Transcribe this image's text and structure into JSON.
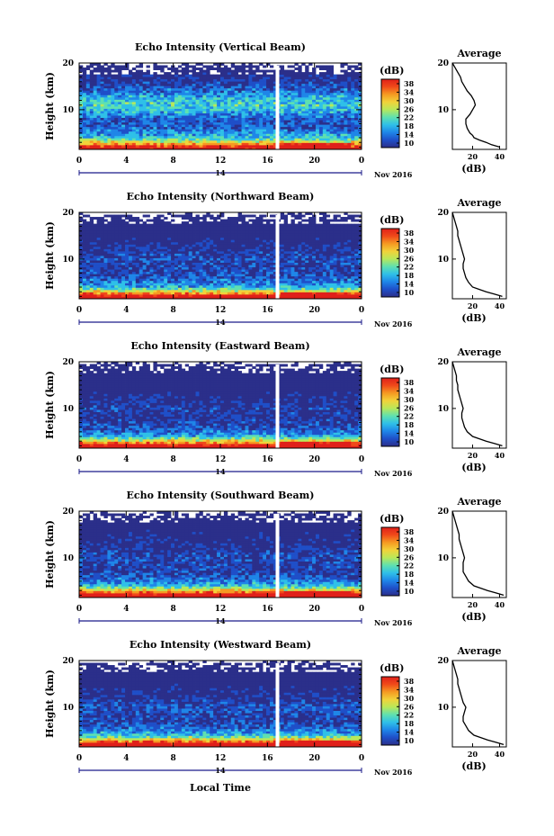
{
  "chart_data": {
    "type": "heatmap",
    "date_label": "Nov 2016",
    "day_label": "14",
    "x_common_label": "Local Time",
    "x_ticks": [
      "0",
      "4",
      "8",
      "12",
      "16",
      "20",
      "0"
    ],
    "xlim": [
      0,
      24
    ],
    "y_label": "Height (km)",
    "ylim": [
      1.5,
      20
    ],
    "y_ticks": [
      "20",
      "10"
    ],
    "colorbar": {
      "unit_label": "(dB)",
      "ticks": [
        "38",
        "34",
        "30",
        "26",
        "22",
        "18",
        "14",
        "10"
      ],
      "range": [
        10,
        40
      ],
      "colors": [
        "#2b2f8a",
        "#1f4fc8",
        "#1f86e8",
        "#2fc0e8",
        "#5fe0b0",
        "#b8e85a",
        "#f2d23a",
        "#f59a22",
        "#f04a1a",
        "#e0201a"
      ]
    },
    "profile": {
      "title": "Average",
      "x_label": "(dB)",
      "x_ticks": [
        "20",
        "40"
      ],
      "xlim": [
        5,
        45
      ]
    },
    "panels": [
      {
        "title": "Echo Intensity (Vertical Beam)",
        "profile": [
          [
            2,
            40
          ],
          [
            2.5,
            34
          ],
          [
            3,
            30
          ],
          [
            3.5,
            25
          ],
          [
            4,
            21
          ],
          [
            4.5,
            20
          ],
          [
            5,
            18
          ],
          [
            6,
            16
          ],
          [
            7,
            15
          ],
          [
            8,
            15
          ],
          [
            9,
            18
          ],
          [
            10,
            20
          ],
          [
            11,
            22
          ],
          [
            12,
            21
          ],
          [
            13,
            19
          ],
          [
            14,
            16
          ],
          [
            15,
            14
          ],
          [
            16,
            12
          ],
          [
            17,
            11
          ],
          [
            18,
            9
          ],
          [
            19,
            7
          ],
          [
            20,
            5
          ]
        ]
      },
      {
        "title": "Echo Intensity (Northward Beam)",
        "profile": [
          [
            2,
            42
          ],
          [
            2.5,
            36
          ],
          [
            3,
            30
          ],
          [
            3.5,
            25
          ],
          [
            4,
            20
          ],
          [
            5,
            17
          ],
          [
            6,
            15
          ],
          [
            7,
            14
          ],
          [
            8,
            13
          ],
          [
            9,
            13
          ],
          [
            10,
            14
          ],
          [
            11,
            13
          ],
          [
            12,
            12
          ],
          [
            13,
            11
          ],
          [
            14,
            10
          ],
          [
            15,
            9
          ],
          [
            16,
            9
          ],
          [
            17,
            8
          ],
          [
            18,
            7
          ],
          [
            19,
            6
          ],
          [
            20,
            5
          ]
        ]
      },
      {
        "title": "Echo Intensity (Eastward Beam)",
        "profile": [
          [
            2,
            42
          ],
          [
            2.5,
            36
          ],
          [
            3,
            30
          ],
          [
            3.5,
            25
          ],
          [
            4,
            20
          ],
          [
            5,
            16
          ],
          [
            6,
            14
          ],
          [
            7,
            13
          ],
          [
            8,
            12
          ],
          [
            9,
            12
          ],
          [
            10,
            13
          ],
          [
            11,
            12
          ],
          [
            12,
            11
          ],
          [
            13,
            10
          ],
          [
            14,
            9
          ],
          [
            15,
            9
          ],
          [
            16,
            8
          ],
          [
            17,
            8
          ],
          [
            18,
            7
          ],
          [
            19,
            6
          ],
          [
            20,
            5
          ]
        ]
      },
      {
        "title": "Echo Intensity (Southward Beam)",
        "profile": [
          [
            2,
            43
          ],
          [
            2.5,
            37
          ],
          [
            3,
            31
          ],
          [
            3.5,
            26
          ],
          [
            4,
            21
          ],
          [
            5,
            17
          ],
          [
            6,
            15
          ],
          [
            7,
            13
          ],
          [
            8,
            13
          ],
          [
            9,
            13
          ],
          [
            10,
            14
          ],
          [
            11,
            13
          ],
          [
            12,
            12
          ],
          [
            13,
            11
          ],
          [
            14,
            10
          ],
          [
            15,
            10
          ],
          [
            16,
            9
          ],
          [
            17,
            8
          ],
          [
            18,
            7
          ],
          [
            19,
            6
          ],
          [
            20,
            5
          ]
        ]
      },
      {
        "title": "Echo Intensity (Westward Beam)",
        "profile": [
          [
            2,
            43
          ],
          [
            2.5,
            37
          ],
          [
            3,
            31
          ],
          [
            3.5,
            26
          ],
          [
            4,
            21
          ],
          [
            5,
            17
          ],
          [
            6,
            15
          ],
          [
            7,
            13
          ],
          [
            8,
            13
          ],
          [
            9,
            14
          ],
          [
            10,
            15
          ],
          [
            11,
            13
          ],
          [
            12,
            12
          ],
          [
            13,
            11
          ],
          [
            14,
            10
          ],
          [
            15,
            9
          ],
          [
            16,
            9
          ],
          [
            17,
            8
          ],
          [
            18,
            7
          ],
          [
            19,
            6
          ],
          [
            20,
            5
          ]
        ]
      }
    ]
  }
}
